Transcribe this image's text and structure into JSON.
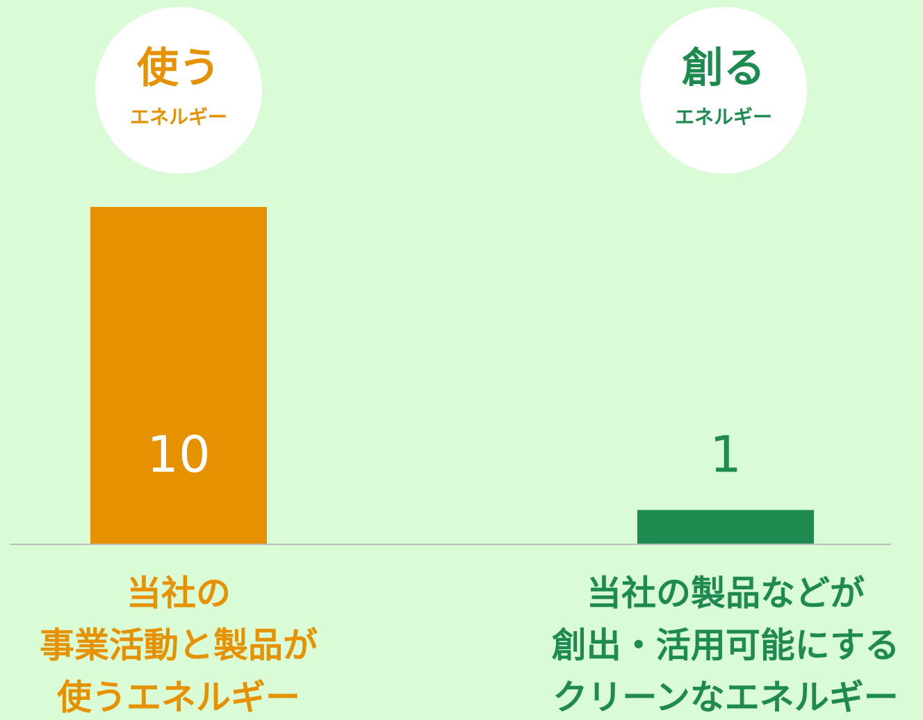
{
  "chart_data": {
    "type": "bar",
    "badges": [
      [
        "使う",
        "エネルギー"
      ],
      [
        "創る",
        "エネルギー"
      ]
    ],
    "categories": [
      [
        "当社の",
        "事業活動と製品が",
        "使うエネルギー"
      ],
      [
        "当社の製品などが",
        "創出・活用可能にする",
        "クリーンなエネルギー"
      ]
    ],
    "values": [
      10,
      1
    ],
    "colors": [
      "#e69100",
      "#1e8a4f"
    ]
  }
}
